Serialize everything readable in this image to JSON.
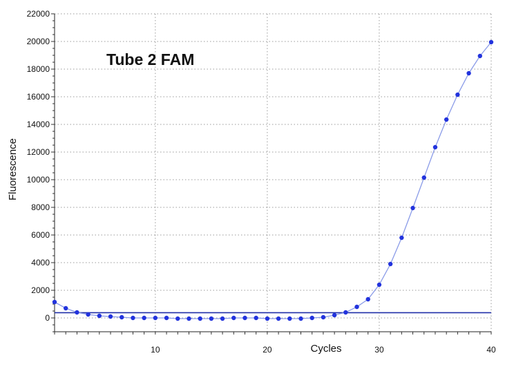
{
  "chart_data": {
    "type": "line",
    "title": "Tube 2 FAM",
    "xlabel": "Cycles",
    "ylabel": "Fluorescence",
    "xlim": [
      1,
      40
    ],
    "ylim": [
      -1000,
      22000
    ],
    "x_ticks": [
      10,
      20,
      30,
      40
    ],
    "x_tick_labels": [
      "10",
      "20",
      "30",
      "40"
    ],
    "y_ticks": [
      0,
      2000,
      4000,
      6000,
      8000,
      10000,
      12000,
      14000,
      16000,
      18000,
      20000,
      22000
    ],
    "y_tick_labels": [
      "0",
      "2000",
      "4000",
      "6000",
      "8000",
      "10000",
      "12000",
      "14000",
      "16000",
      "18000",
      "20000",
      "22000"
    ],
    "grid": true,
    "threshold": 380,
    "colors": {
      "series": "#2233dd",
      "line": "#8a9be8",
      "threshold": "#1f2fa8",
      "grid": "#9a9a9a"
    },
    "series": [
      {
        "x": [
          1,
          2,
          3,
          4,
          5,
          6,
          7,
          8,
          9,
          10,
          11,
          12,
          13,
          14,
          15,
          16,
          17,
          18,
          19,
          20,
          21,
          22,
          23,
          24,
          25,
          26,
          27,
          28,
          29,
          30,
          31,
          32,
          33,
          34,
          35,
          36,
          37,
          38,
          39,
          40
        ],
        "values": [
          1150,
          700,
          400,
          250,
          150,
          100,
          50,
          0,
          0,
          0,
          0,
          -50,
          -50,
          -50,
          -50,
          -50,
          0,
          0,
          0,
          -50,
          -50,
          -50,
          -50,
          0,
          50,
          200,
          400,
          800,
          1350,
          2400,
          3900,
          5800,
          7950,
          10150,
          12350,
          14350,
          16150,
          17700,
          18950,
          19950
        ]
      }
    ]
  }
}
